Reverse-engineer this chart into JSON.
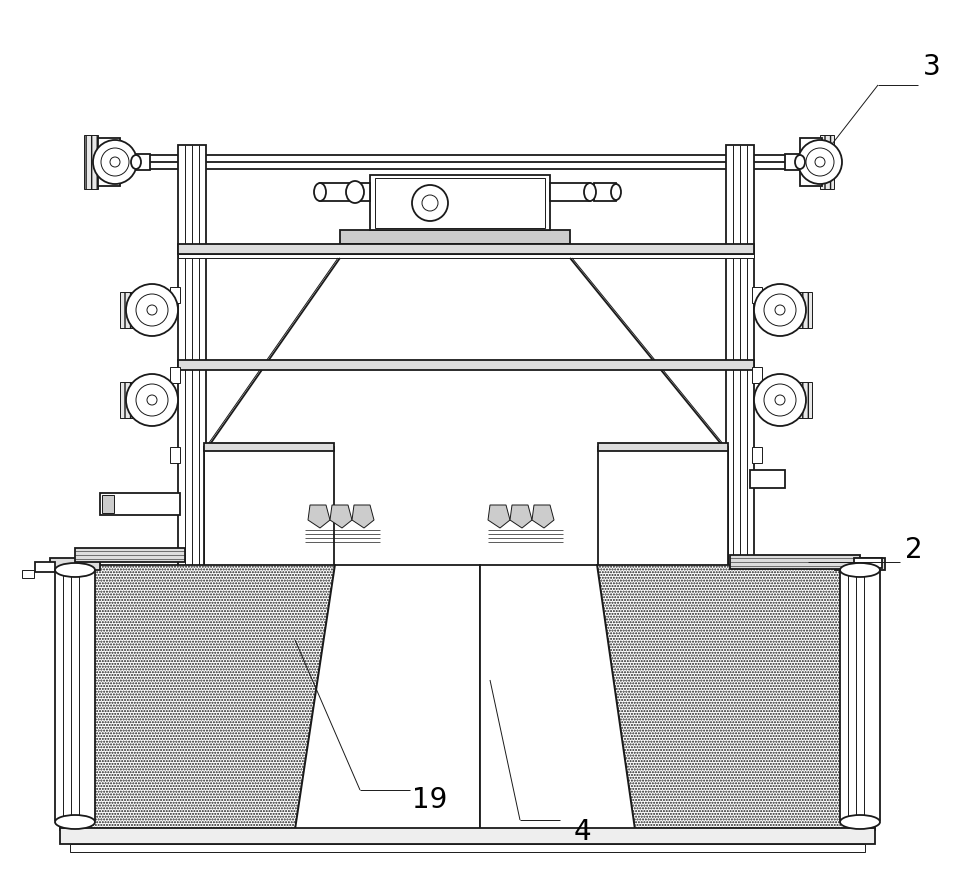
{
  "bg_color": "#ffffff",
  "line_color": "#1a1a1a",
  "label_color": "#000000",
  "annotation_line_color": "#333333",
  "label_fontsize": 20,
  "figsize": [
    9.54,
    8.9
  ],
  "dpi": 100,
  "note_lw": 0.8,
  "main_lw": 1.3,
  "thin_lw": 0.7,
  "thick_lw": 2.0
}
